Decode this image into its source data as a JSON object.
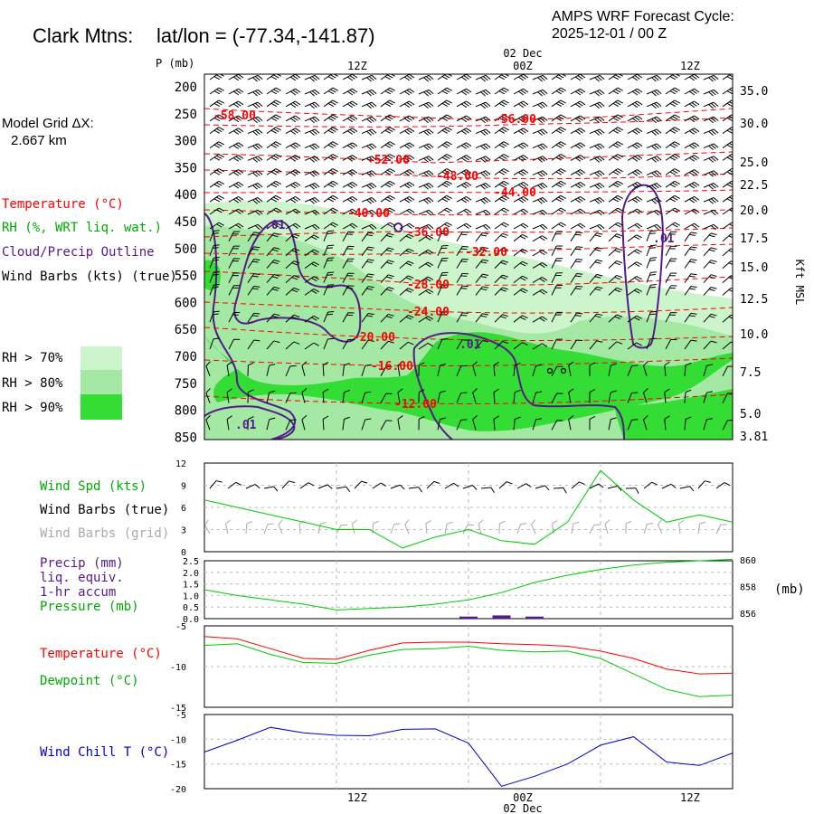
{
  "header": {
    "station": "Clark Mtns:",
    "latlon": "lat/lon = (-77.34,-141.87)",
    "cycle_line1": "AMPS WRF Forecast Cycle:",
    "cycle_line2": "2025-12-01 / 00  Z"
  },
  "model_grid": {
    "line1": "Model Grid ΔX:",
    "line2": "2.667 km"
  },
  "colors": {
    "temperature": "#ff0000",
    "rh": "#00aa00",
    "cloud": "#551a8b",
    "rh70": "#ccf5cc",
    "rh80": "#a3e8a3",
    "rh90": "#33dd33",
    "wind_chill": "#0000cc",
    "grid_barb": "#aaaaaa",
    "line_green": "#00cc00"
  },
  "time_axis": {
    "top_ticks": [
      "12Z",
      "00Z",
      "12Z"
    ],
    "top_date": "02 Dec",
    "bottom_ticks": [
      "12Z",
      "00Z",
      "12Z"
    ],
    "bottom_date": "02 Dec"
  },
  "legend": {
    "temperature": "Temperature (°C)",
    "rh": "RH (%, WRT liq. wat.)",
    "cloud": "Cloud/Precip Outline",
    "barbs": "Wind Barbs (kts) (true)",
    "rh70": "RH > 70%",
    "rh80": "RH > 80%",
    "rh90": "RH > 90%"
  },
  "chart_data": [
    {
      "type": "heatmap",
      "ylabel": "P (mb)",
      "right_label": "Kft MSL",
      "pressure_ticks": [
        "200",
        "250",
        "300",
        "350",
        "400",
        "450",
        "500",
        "550",
        "600",
        "650",
        "700",
        "750",
        "800",
        "850"
      ],
      "height_ticks": [
        "35.0",
        "30.0",
        "25.0",
        "22.5",
        "20.0",
        "17.5",
        "15.0",
        "12.5",
        "10.0",
        "7.5",
        "5.0",
        "3.81"
      ],
      "temperature_labels": [
        "-58.00",
        "-56.00",
        "-52.00",
        "-48.00",
        "-44.00",
        "-40.00",
        "-36.00",
        "-32.00",
        "-28.00",
        "-24.00",
        "-20.00",
        "-16.00",
        "-12.00"
      ],
      "cloud_labels": [
        ".01",
        ".01",
        ".01",
        ".01"
      ]
    },
    {
      "type": "line",
      "labels": {
        "speed": "Wind Spd (kts)",
        "barbs_true": "Wind Barbs (true)",
        "barbs_grid": "Wind Barbs (grid)"
      },
      "yticks": [
        "12",
        "9",
        "6",
        "3",
        "0"
      ],
      "ylim": [
        0,
        12
      ],
      "x": [
        0,
        3,
        6,
        9,
        12,
        15,
        18,
        21,
        24,
        27,
        30,
        33,
        36,
        39,
        42,
        45,
        48
      ],
      "wind_speed": [
        7,
        6,
        5,
        4,
        3,
        3,
        0.5,
        2,
        3,
        1.5,
        1,
        4,
        11,
        7,
        4,
        5,
        4
      ]
    },
    {
      "type": "line",
      "labels": {
        "precip": "Precip (mm)",
        "liq": "liq. equiv.",
        "accum": "1-hr accum",
        "pressure": "Pressure (mb)"
      },
      "yticks_left": [
        "2.5",
        "2.0",
        "1.5",
        "1.0",
        "0.5",
        "0.0"
      ],
      "yticks_right": [
        "860",
        "858",
        "856"
      ],
      "right_unit": "(mb)",
      "ylim_left": [
        0,
        2.5
      ],
      "ylim_right": [
        856,
        860
      ],
      "x": [
        0,
        3,
        6,
        9,
        12,
        15,
        18,
        21,
        24,
        27,
        30,
        33,
        36,
        39,
        42,
        45,
        48
      ],
      "pressure": [
        858.0,
        857.6,
        857.3,
        857.0,
        856.6,
        856.7,
        856.8,
        857.0,
        857.3,
        857.8,
        858.5,
        859.0,
        859.4,
        859.7,
        859.9,
        860.0,
        860.1
      ],
      "precip": [
        0,
        0,
        0,
        0,
        0,
        0,
        0,
        0,
        0.05,
        0.1,
        0.05,
        0,
        0,
        0,
        0,
        0,
        0
      ]
    },
    {
      "type": "line",
      "labels": {
        "temperature": "Temperature (°C)",
        "dewpoint": "Dewpoint (°C)"
      },
      "yticks": [
        "-5",
        "-10",
        "-15"
      ],
      "ylim": [
        -15,
        -5
      ],
      "x": [
        0,
        3,
        6,
        9,
        12,
        15,
        18,
        21,
        24,
        27,
        30,
        33,
        36,
        39,
        42,
        45,
        48
      ],
      "temperature": [
        -6.3,
        -6.6,
        -7.8,
        -9.0,
        -9.1,
        -8.0,
        -7.1,
        -7.0,
        -7.0,
        -7.2,
        -7.3,
        -7.5,
        -8.1,
        -9.0,
        -10.3,
        -10.9,
        -10.8
      ],
      "dewpoint": [
        -7.4,
        -7.2,
        -8.5,
        -9.5,
        -9.6,
        -8.6,
        -7.9,
        -7.8,
        -7.5,
        -8.0,
        -8.2,
        -8.1,
        -9.0,
        -10.9,
        -12.8,
        -13.7,
        -13.5
      ]
    },
    {
      "type": "line",
      "labels": {
        "wind_chill": "Wind Chill T (°C)"
      },
      "yticks": [
        "-5",
        "-10",
        "-15",
        "-20"
      ],
      "ylim": [
        -20,
        -5
      ],
      "x": [
        0,
        3,
        6,
        9,
        12,
        15,
        18,
        21,
        24,
        27,
        30,
        33,
        36,
        39,
        42,
        45,
        48
      ],
      "wind_chill": [
        -12.6,
        -10.2,
        -7.6,
        -8.7,
        -9.2,
        -9.3,
        -8.0,
        -7.9,
        -10.8,
        -19.5,
        -17.5,
        -15.0,
        -11.2,
        -9.5,
        -14.6,
        -15.3,
        -12.8
      ]
    }
  ]
}
